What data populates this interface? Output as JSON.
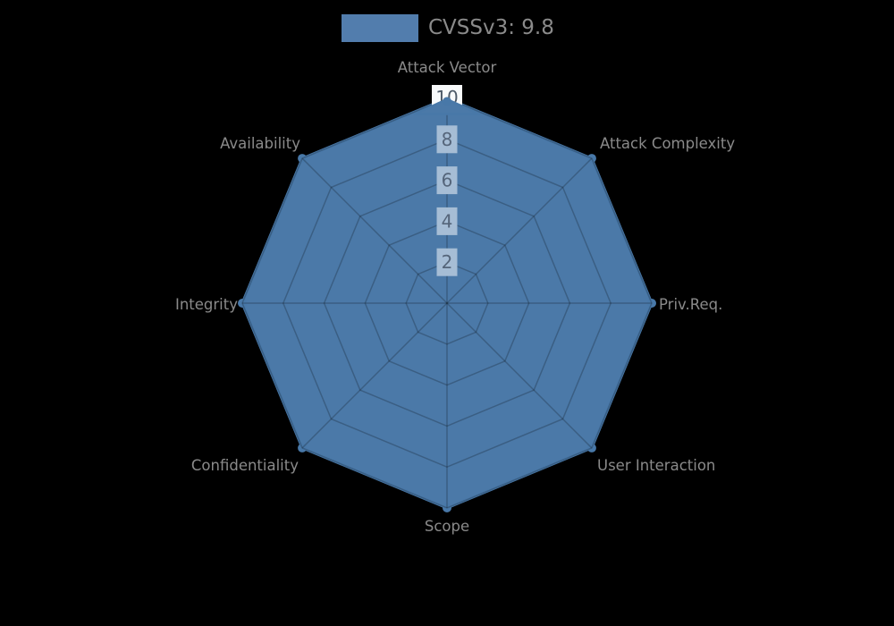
{
  "legend": {
    "series_label": "CVSSv3: 9.8"
  },
  "chart_data": {
    "type": "radar",
    "series": [
      {
        "name": "CVSSv3: 9.8",
        "values": [
          10,
          10,
          10,
          10,
          10,
          10,
          10,
          10
        ]
      }
    ],
    "categories": [
      "Attack Vector",
      "Attack Complexity",
      "Priv.Req.",
      "User Interaction",
      "Scope",
      "Confidentiality",
      "Integrity",
      "Availability"
    ],
    "radial_ticks": [
      2,
      4,
      6,
      8,
      10
    ],
    "radial_range": [
      0,
      10
    ],
    "grid": "spider-web, 5 concentric octagon rings with 8 radial spokes",
    "legend_position": "top-center",
    "title": "",
    "colors": {
      "background": "#000000",
      "series_fill": "#4b79a8",
      "series_stroke": "#4878a8",
      "legend_swatch": "#527dad",
      "grid_line": "rgba(0,0,0,0.22)",
      "tick_box": "#a6bdd5",
      "tick_text": "#55657a",
      "tick10_box": "#f8fafb",
      "tick10_text": "#4d5a68",
      "axis_label": "#8a8a8a",
      "legend_text": "#8a8a8a"
    }
  }
}
